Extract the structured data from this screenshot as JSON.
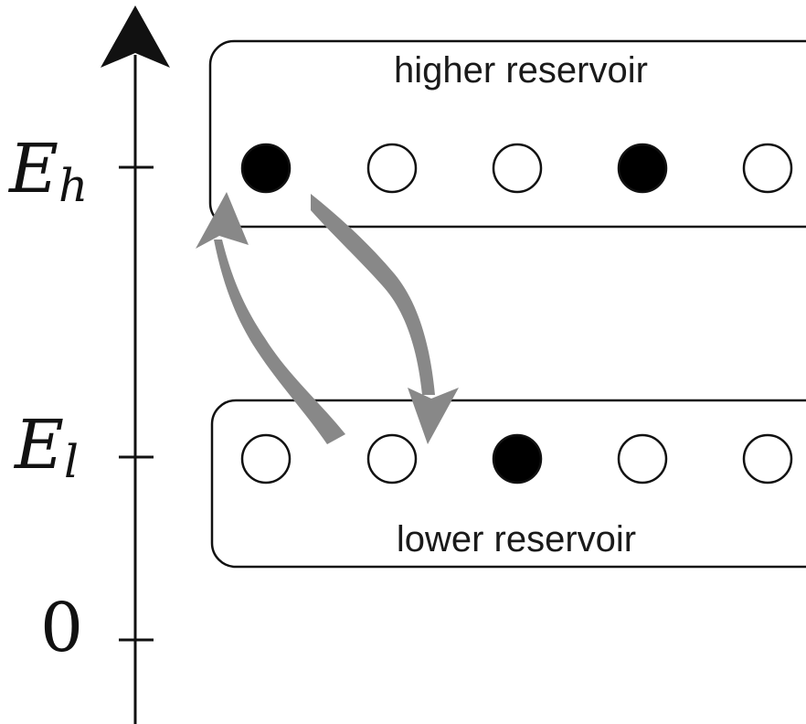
{
  "axis": {
    "levels": [
      {
        "symbol": "E",
        "subscript": "h"
      },
      {
        "symbol": "E",
        "subscript": "l"
      },
      {
        "symbol": "0",
        "subscript": ""
      }
    ]
  },
  "reservoirs": {
    "higher": {
      "label": "higher reservoir",
      "sites": [
        true,
        false,
        false,
        true,
        false
      ]
    },
    "lower": {
      "label": "lower reservoir",
      "sites": [
        false,
        false,
        true,
        false,
        false
      ]
    }
  },
  "colors": {
    "line": "#111111",
    "arrow": "#888888",
    "filled_site": "#000000",
    "empty_site": "#ffffff"
  }
}
